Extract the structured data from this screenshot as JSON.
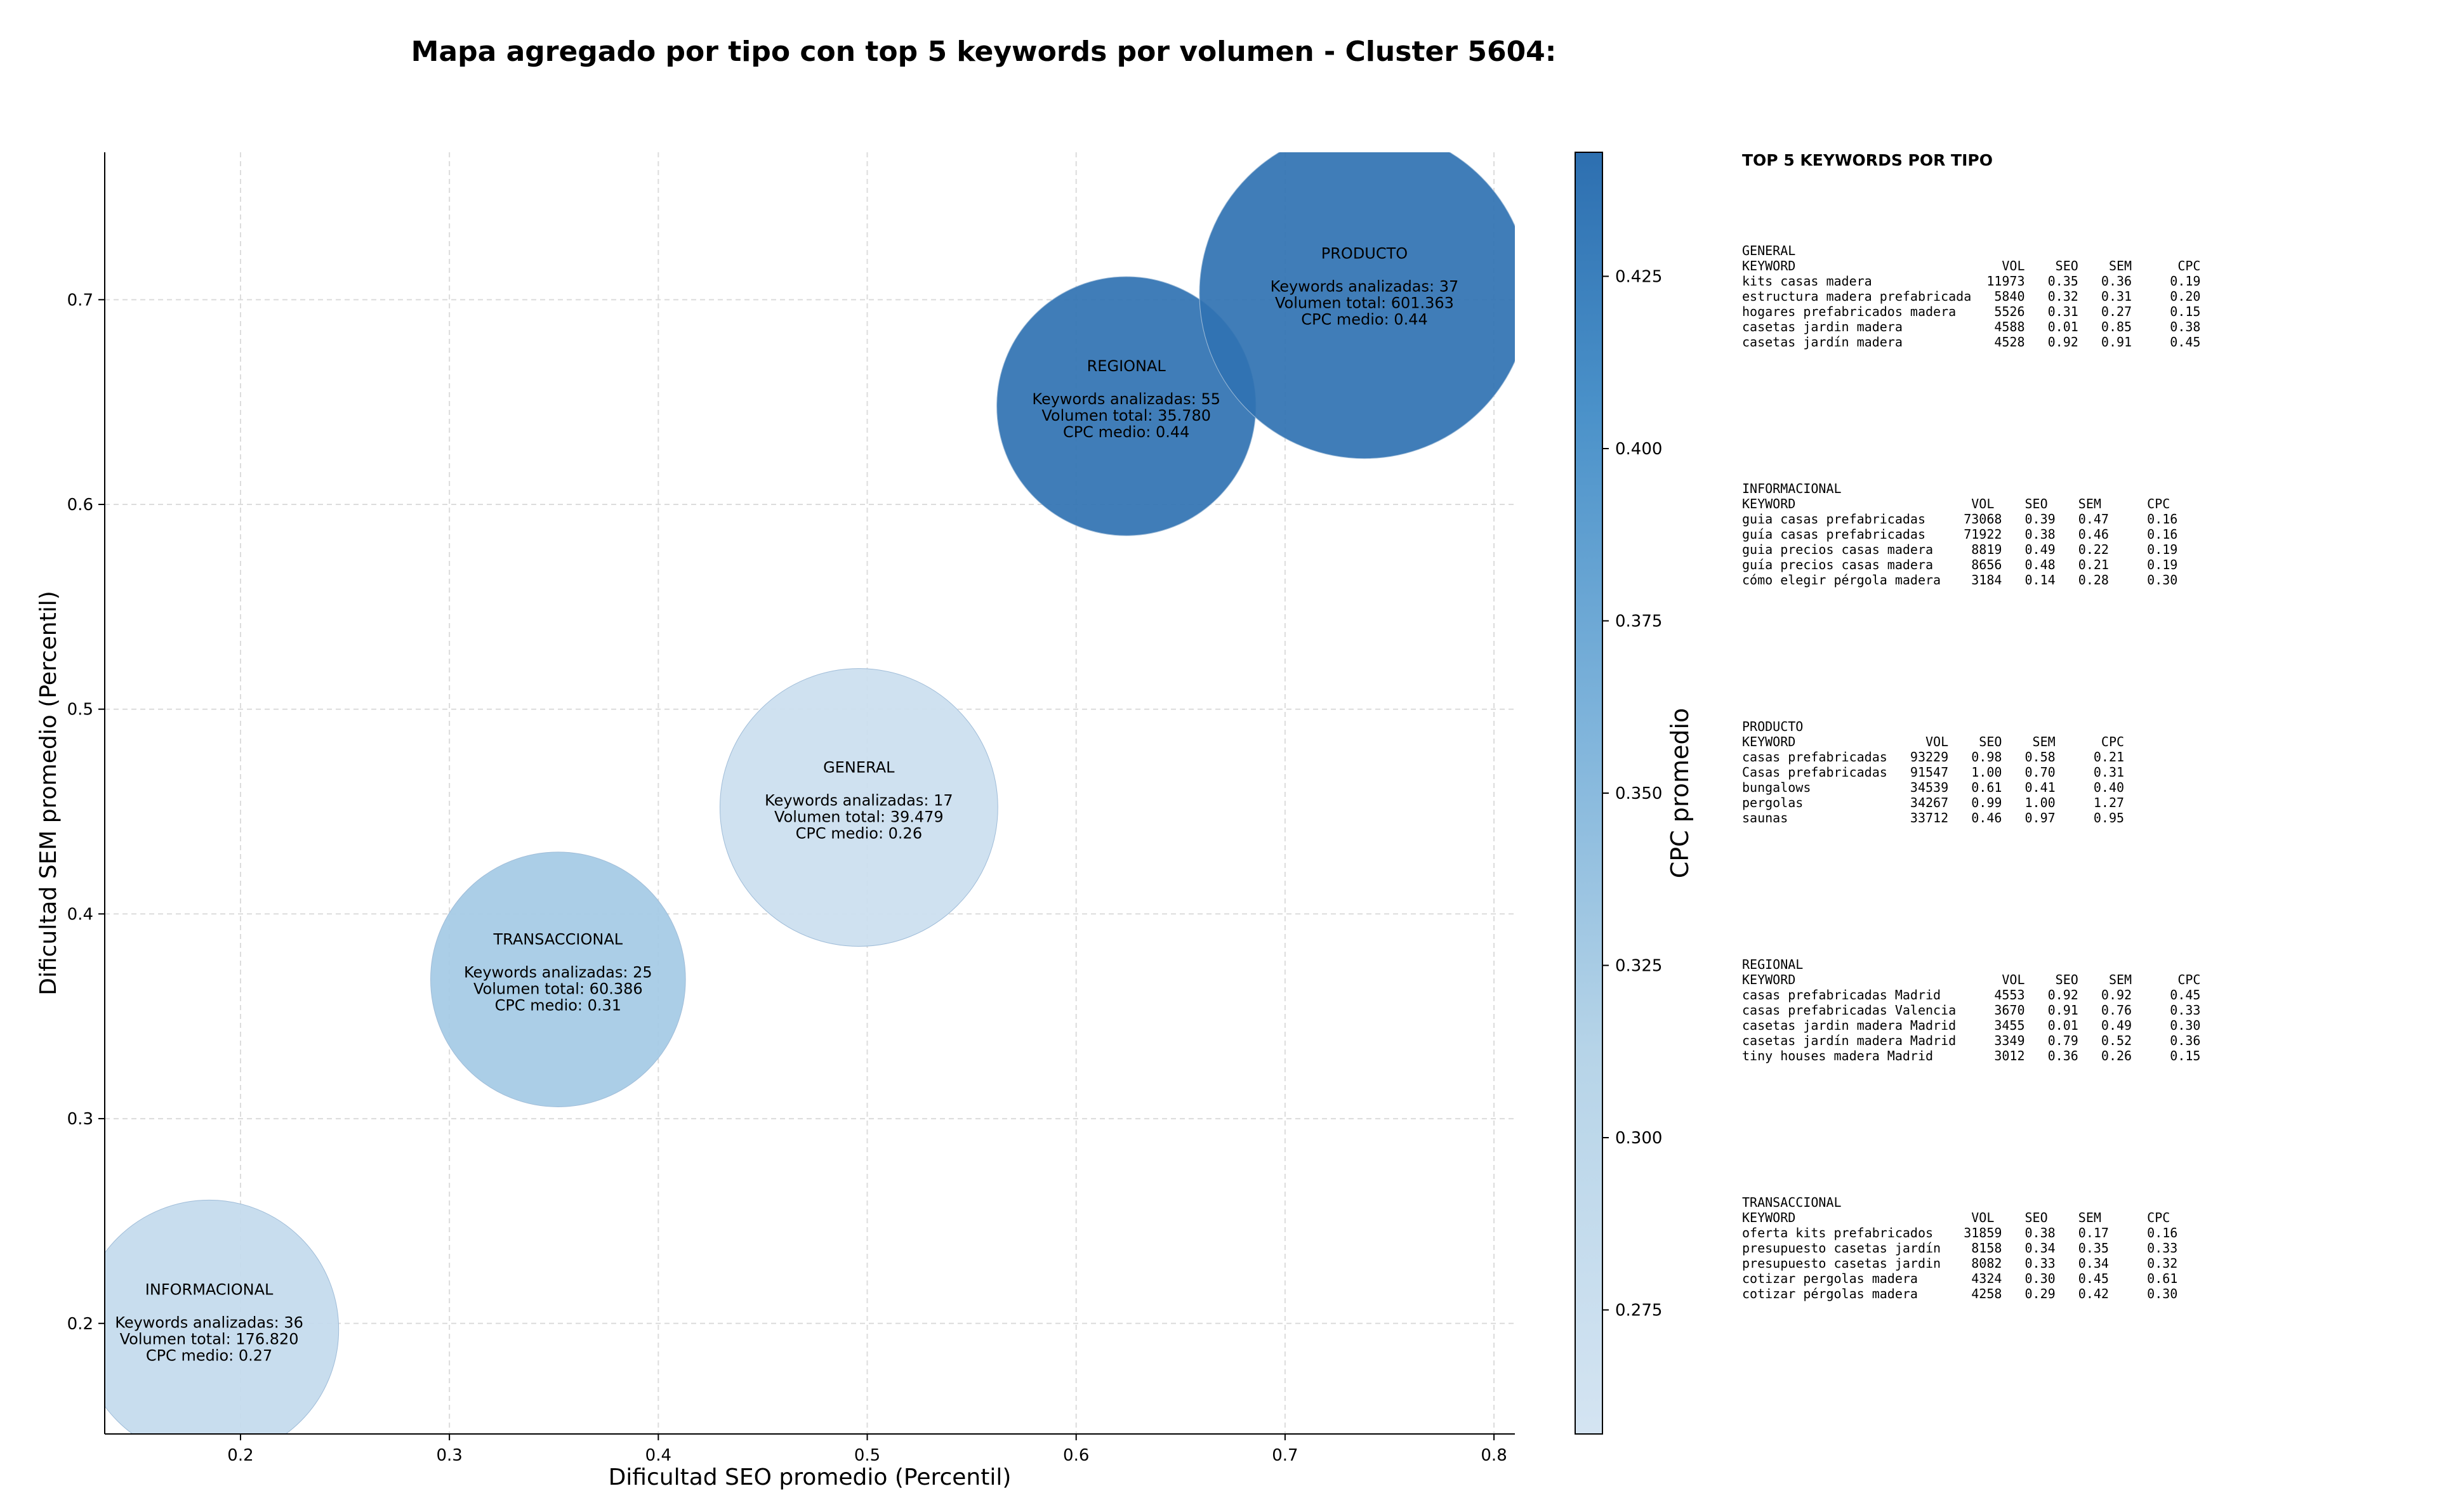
{
  "chart_data": {
    "type": "scatter",
    "variant": "bubble",
    "title": "Mapa agregado por tipo con top 5 keywords por volumen - Cluster 5604:",
    "xlabel": "Dificultad SEO promedio (Percentil)",
    "ylabel": "Dificultad SEM promedio (Percentil)",
    "xlim": [
      0.135,
      0.81
    ],
    "ylim": [
      0.146,
      0.772
    ],
    "xticks": [
      "0.2",
      "0.3",
      "0.4",
      "0.5",
      "0.6",
      "0.7",
      "0.8"
    ],
    "xtick_values": [
      0.2,
      0.3,
      0.4,
      0.5,
      0.6,
      0.7,
      0.8
    ],
    "yticks": [
      "0.2",
      "0.3",
      "0.4",
      "0.5",
      "0.6",
      "0.7"
    ],
    "ytick_values": [
      0.2,
      0.3,
      0.4,
      0.5,
      0.6,
      0.7
    ],
    "grid": true,
    "colormap": "Blues",
    "colorbar": {
      "label": "CPC promedio",
      "range": [
        0.257,
        0.443
      ],
      "ticks": [
        "0.275",
        "0.300",
        "0.325",
        "0.350",
        "0.375",
        "0.400",
        "0.425"
      ],
      "tick_values": [
        0.275,
        0.3,
        0.325,
        0.35,
        0.375,
        0.4,
        0.425
      ],
      "color_low": "#cddff0",
      "color_high": "#2d6fb0"
    },
    "points": [
      {
        "name": "INFORMACIONAL",
        "x": 0.185,
        "y": 0.197,
        "cpc": 0.27,
        "radius": 0.062,
        "lines": [
          "Keywords analizadas: 36",
          "Volumen total: 176.820",
          "CPC medio: 0.27"
        ]
      },
      {
        "name": "TRANSACCIONAL",
        "x": 0.352,
        "y": 0.368,
        "cpc": 0.31,
        "radius": 0.061,
        "lines": [
          "Keywords analizadas: 25",
          "Volumen total: 60.386",
          "CPC medio: 0.31"
        ]
      },
      {
        "name": "GENERAL",
        "x": 0.496,
        "y": 0.452,
        "cpc": 0.26,
        "radius": 0.0665,
        "lines": [
          "Keywords analizadas: 17",
          "Volumen total: 39.479",
          "CPC medio: 0.26"
        ]
      },
      {
        "name": "REGIONAL",
        "x": 0.624,
        "y": 0.648,
        "cpc": 0.44,
        "radius": 0.062,
        "lines": [
          "Keywords analizadas: 55",
          "Volumen total: 35.780",
          "CPC medio: 0.44"
        ]
      },
      {
        "name": "PRODUCTO",
        "x": 0.738,
        "y": 0.703,
        "cpc": 0.44,
        "radius": 0.079,
        "lines": [
          "Keywords analizadas: 37",
          "Volumen total: 601.363",
          "CPC medio: 0.44"
        ]
      }
    ]
  },
  "table": {
    "heading": "TOP 5 KEYWORDS POR TIPO",
    "blocks": [
      {
        "type": "GENERAL",
        "lines": [
          "KEYWORD                           VOL    SEO    SEM      CPC",
          "kits casas madera               11973   0.35   0.36     0.19",
          "estructura madera prefabricada   5840   0.32   0.31     0.20",
          "hogares prefabricados madera     5526   0.31   0.27     0.15",
          "casetas jardin madera            4588   0.01   0.85     0.38",
          "casetas jardín madera            4528   0.92   0.91     0.45"
        ]
      },
      {
        "type": "INFORMACIONAL",
        "lines": [
          "KEYWORD                       VOL    SEO    SEM      CPC",
          "guia casas prefabricadas     73068   0.39   0.47     0.16",
          "guía casas prefabricadas     71922   0.38   0.46     0.16",
          "guia precios casas madera     8819   0.49   0.22     0.19",
          "guía precios casas madera     8656   0.48   0.21     0.19",
          "cómo elegir pérgola madera    3184   0.14   0.28     0.30"
        ]
      },
      {
        "type": "PRODUCTO",
        "lines": [
          "KEYWORD                 VOL    SEO    SEM      CPC",
          "casas prefabricadas   93229   0.98   0.58     0.21",
          "Casas prefabricadas   91547   1.00   0.70     0.31",
          "bungalows             34539   0.61   0.41     0.40",
          "pergolas              34267   0.99   1.00     1.27",
          "saunas                33712   0.46   0.97     0.95"
        ]
      },
      {
        "type": "REGIONAL",
        "lines": [
          "KEYWORD                           VOL    SEO    SEM      CPC",
          "casas prefabricadas Madrid       4553   0.92   0.92     0.45",
          "casas prefabricadas Valencia     3670   0.91   0.76     0.33",
          "casetas jardin madera Madrid     3455   0.01   0.49     0.30",
          "casetas jardín madera Madrid     3349   0.79   0.52     0.36",
          "tiny houses madera Madrid        3012   0.36   0.26     0.15"
        ]
      },
      {
        "type": "TRANSACCIONAL",
        "lines": [
          "KEYWORD                       VOL    SEO    SEM      CPC",
          "oferta kits prefabricados    31859   0.38   0.17     0.16",
          "presupuesto casetas jardín    8158   0.34   0.35     0.33",
          "presupuesto casetas jardin    8082   0.33   0.34     0.32",
          "cotizar pergolas madera       4324   0.30   0.45     0.61",
          "cotizar pérgolas madera       4258   0.29   0.42     0.30"
        ]
      }
    ]
  }
}
